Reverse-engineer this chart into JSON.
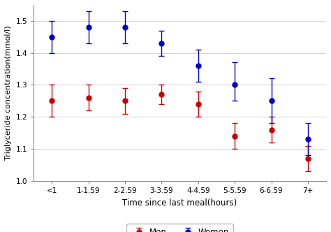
{
  "categories": [
    "<1",
    "1-1.59",
    "2-2.59",
    "3-3.59",
    "4-4.59",
    "5-5.59",
    "6-6.59",
    "7+"
  ],
  "men_mean": [
    1.25,
    1.26,
    1.25,
    1.27,
    1.24,
    1.14,
    1.16,
    1.07
  ],
  "men_upper": [
    1.3,
    1.3,
    1.29,
    1.3,
    1.28,
    1.18,
    1.2,
    1.11
  ],
  "men_lower": [
    1.2,
    1.22,
    1.21,
    1.24,
    1.2,
    1.1,
    1.12,
    1.03
  ],
  "women_mean": [
    1.45,
    1.48,
    1.48,
    1.43,
    1.36,
    1.3,
    1.25,
    1.13
  ],
  "women_upper": [
    1.5,
    1.53,
    1.53,
    1.47,
    1.41,
    1.37,
    1.32,
    1.18
  ],
  "women_lower": [
    1.4,
    1.43,
    1.43,
    1.39,
    1.31,
    1.25,
    1.18,
    1.08
  ],
  "men_color": "#cc0000",
  "women_color": "#0000cc",
  "ylabel": "Triglyceride concentration(mmol/l)",
  "xlabel": "Time since last meal(hours)",
  "ylim": [
    1.0,
    1.55
  ],
  "yticks": [
    1.0,
    1.1,
    1.2,
    1.3,
    1.4,
    1.5
  ],
  "legend_men": "Men",
  "legend_women": "Women",
  "bg_color": "#ffffff",
  "grid_color": "#cccccc"
}
